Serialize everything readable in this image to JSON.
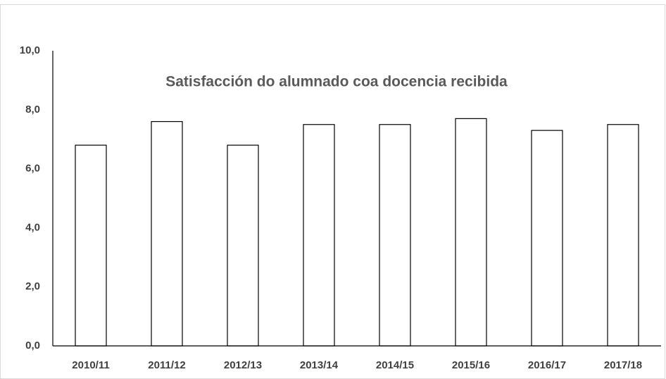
{
  "chart_data": {
    "type": "bar",
    "title": "Satisfacción do alumnado coa docencia recibida",
    "categories": [
      "2010/11",
      "2011/12",
      "2012/13",
      "2013/14",
      "2014/15",
      "2015/16",
      "2016/17",
      "2017/18"
    ],
    "values": [
      6.8,
      7.6,
      6.8,
      7.5,
      7.5,
      7.7,
      7.3,
      7.5
    ],
    "color": "#ffffff",
    "edgecolor": "#000000",
    "ylim": [
      0,
      10
    ],
    "yticks": [
      {
        "value": 0,
        "label": "0,0"
      },
      {
        "value": 2,
        "label": "2,0"
      },
      {
        "value": 4,
        "label": "4,0"
      },
      {
        "value": 6,
        "label": "6,0"
      },
      {
        "value": 8,
        "label": "8,0"
      },
      {
        "value": 10,
        "label": "10,0"
      }
    ],
    "grid": false
  }
}
